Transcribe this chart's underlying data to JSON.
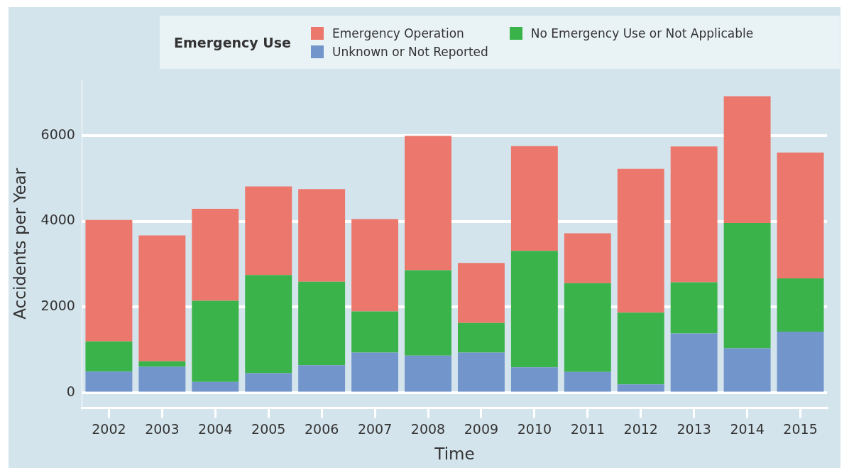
{
  "chart_data": {
    "type": "bar",
    "stacked": true,
    "xlabel": "Time",
    "ylabel": "Accidents per Year",
    "legend_title": "Emergency Use",
    "legend": "top right",
    "grid": "y",
    "categories": [
      "2002",
      "2003",
      "2004",
      "2005",
      "2006",
      "2007",
      "2008",
      "2009",
      "2010",
      "2011",
      "2012",
      "2013",
      "2014",
      "2015"
    ],
    "ylim": [
      -350,
      7300
    ],
    "yticks": [
      0,
      2000,
      4000,
      6000
    ],
    "series": [
      {
        "name": "Unknown or Not Reported",
        "color": "#7295cb",
        "values": [
          500,
          610,
          260,
          460,
          650,
          940,
          870,
          940,
          600,
          490,
          200,
          1390,
          1040,
          1430
        ]
      },
      {
        "name": "No Emergency Use or Not Applicable",
        "color": "#3bb34b",
        "values": [
          700,
          130,
          1890,
          2290,
          1940,
          960,
          1990,
          690,
          2710,
          2070,
          1670,
          1190,
          2920,
          1240
        ]
      },
      {
        "name": "Emergency Operation",
        "color": "#ec786d",
        "values": [
          2830,
          2930,
          2140,
          2060,
          2160,
          2150,
          3130,
          1400,
          2440,
          1160,
          3350,
          3160,
          2950,
          2930
        ]
      }
    ]
  }
}
